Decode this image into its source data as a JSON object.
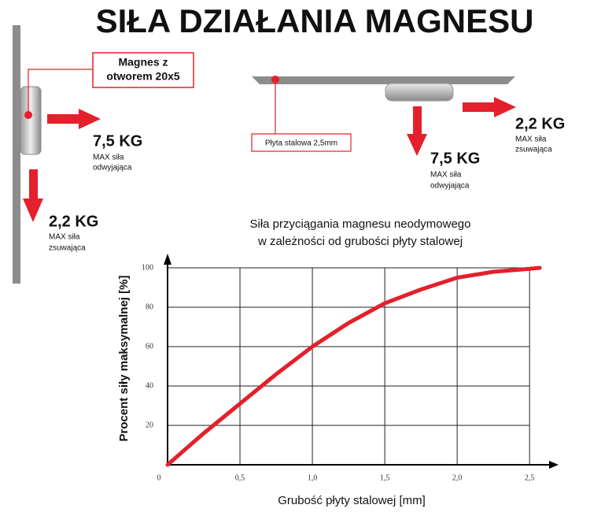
{
  "title": "SIŁA DZIAŁANIA MAGNESU",
  "left": {
    "box_label": [
      "Magnes z",
      "otworem 20x5"
    ],
    "pull": {
      "value": "7,5 KG",
      "text": [
        "MAX siła",
        "odwyjająca"
      ]
    },
    "shear": {
      "value": "2,2 KG",
      "text": [
        "MAX siła",
        "zsuwająca"
      ]
    }
  },
  "right": {
    "box_label": "Płyta stalowa 2,5mm",
    "pull": {
      "value": "7,5 KG",
      "text": [
        "MAX siła",
        "odwyjająca"
      ]
    },
    "shear": {
      "value": "2,2 KG",
      "text": [
        "MAX siła",
        "zsuwająca"
      ]
    }
  },
  "chart_data": {
    "type": "line",
    "title": [
      "Siła przyciągania magnesu neodymowego",
      "w zależności od grubości płyty stalowej"
    ],
    "x_label": "Grubość płyty stalowej [mm]",
    "y_label": "Procent siły maksymalnej [%]",
    "x": [
      0,
      0.25,
      0.5,
      0.75,
      1.0,
      1.25,
      1.5,
      1.75,
      2.0,
      2.25,
      2.5,
      2.57
    ],
    "series": [
      {
        "color": "#e3202b",
        "values": [
          0,
          16,
          31,
          46,
          60,
          72,
          82,
          89,
          95,
          98,
          99.5,
          100
        ]
      }
    ],
    "xlim": [
      0,
      2.7
    ],
    "ylim": [
      0,
      104
    ],
    "xticks": [
      0,
      {
        "value": 0.5,
        "label": "0,5"
      },
      {
        "value": 1.0,
        "label": "1,0"
      },
      {
        "value": 1.5,
        "label": "1,5"
      },
      {
        "value": 2.0,
        "label": "2,0"
      },
      {
        "value": 2.5,
        "label": "2,5"
      }
    ],
    "yticks": [
      20,
      40,
      60,
      80,
      100
    ],
    "grid": true
  }
}
